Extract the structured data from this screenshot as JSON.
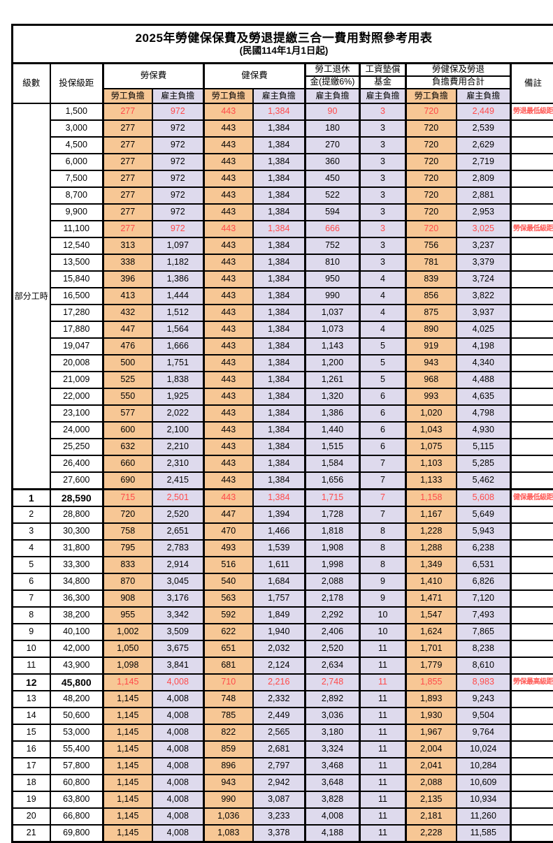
{
  "title": "2025年勞健保保費及勞退提繳三合一費用對照參考用表",
  "subtitle": "(民國114年1月1日起)",
  "header": {
    "level": "級數",
    "bracket": "投保級距",
    "labor_ins": "勞保費",
    "health_ins": "健保費",
    "pension_line1": "勞工退休",
    "pension_line2": "金(提繳6%)",
    "wage_fund_line1": "工資墊償",
    "wage_fund_line2": "基金",
    "total_line1": "勞健保及勞退",
    "total_line2": "負擔費用合計",
    "remark": "備註",
    "employee_share": "勞工負擔",
    "employer_share": "雇主負擔"
  },
  "part_time": {
    "label": "部分工時",
    "rowspan": 23
  },
  "colors": {
    "employee_bg": "#F7C795",
    "employer_bg": "#DEDAED",
    "highlight_red": "#FF4A4A",
    "border": "#000000"
  },
  "rows": [
    {
      "level": "",
      "bracket": "1,500",
      "v": [
        "277",
        "972",
        "443",
        "1,384",
        "90",
        "3",
        "720",
        "2,449"
      ],
      "remark": "勞退最低級距",
      "red": true,
      "thick_top": false,
      "bold": false
    },
    {
      "level": "",
      "bracket": "3,000",
      "v": [
        "277",
        "972",
        "443",
        "1,384",
        "180",
        "3",
        "720",
        "2,539"
      ],
      "remark": "",
      "red": false,
      "thick_top": false,
      "bold": false
    },
    {
      "level": "",
      "bracket": "4,500",
      "v": [
        "277",
        "972",
        "443",
        "1,384",
        "270",
        "3",
        "720",
        "2,629"
      ],
      "remark": "",
      "red": false,
      "thick_top": false,
      "bold": false
    },
    {
      "level": "",
      "bracket": "6,000",
      "v": [
        "277",
        "972",
        "443",
        "1,384",
        "360",
        "3",
        "720",
        "2,719"
      ],
      "remark": "",
      "red": false,
      "thick_top": false,
      "bold": false
    },
    {
      "level": "",
      "bracket": "7,500",
      "v": [
        "277",
        "972",
        "443",
        "1,384",
        "450",
        "3",
        "720",
        "2,809"
      ],
      "remark": "",
      "red": false,
      "thick_top": false,
      "bold": false
    },
    {
      "level": "",
      "bracket": "8,700",
      "v": [
        "277",
        "972",
        "443",
        "1,384",
        "522",
        "3",
        "720",
        "2,881"
      ],
      "remark": "",
      "red": false,
      "thick_top": false,
      "bold": false
    },
    {
      "level": "",
      "bracket": "9,900",
      "v": [
        "277",
        "972",
        "443",
        "1,384",
        "594",
        "3",
        "720",
        "2,953"
      ],
      "remark": "",
      "red": false,
      "thick_top": false,
      "bold": false
    },
    {
      "level": "",
      "bracket": "11,100",
      "v": [
        "277",
        "972",
        "443",
        "1,384",
        "666",
        "3",
        "720",
        "3,025"
      ],
      "remark": "勞保最低級距",
      "red": true,
      "thick_top": false,
      "bold": false
    },
    {
      "level": "",
      "bracket": "12,540",
      "v": [
        "313",
        "1,097",
        "443",
        "1,384",
        "752",
        "3",
        "756",
        "3,237"
      ],
      "remark": "",
      "red": false,
      "thick_top": false,
      "bold": false
    },
    {
      "level": "",
      "bracket": "13,500",
      "v": [
        "338",
        "1,182",
        "443",
        "1,384",
        "810",
        "3",
        "781",
        "3,379"
      ],
      "remark": "",
      "red": false,
      "thick_top": false,
      "bold": false
    },
    {
      "level": "",
      "bracket": "15,840",
      "v": [
        "396",
        "1,386",
        "443",
        "1,384",
        "950",
        "4",
        "839",
        "3,724"
      ],
      "remark": "",
      "red": false,
      "thick_top": false,
      "bold": false
    },
    {
      "level": "",
      "bracket": "16,500",
      "v": [
        "413",
        "1,444",
        "443",
        "1,384",
        "990",
        "4",
        "856",
        "3,822"
      ],
      "remark": "",
      "red": false,
      "thick_top": false,
      "bold": false
    },
    {
      "level": "",
      "bracket": "17,280",
      "v": [
        "432",
        "1,512",
        "443",
        "1,384",
        "1,037",
        "4",
        "875",
        "3,937"
      ],
      "remark": "",
      "red": false,
      "thick_top": false,
      "bold": false
    },
    {
      "level": "",
      "bracket": "17,880",
      "v": [
        "447",
        "1,564",
        "443",
        "1,384",
        "1,073",
        "4",
        "890",
        "4,025"
      ],
      "remark": "",
      "red": false,
      "thick_top": false,
      "bold": false
    },
    {
      "level": "",
      "bracket": "19,047",
      "v": [
        "476",
        "1,666",
        "443",
        "1,384",
        "1,143",
        "5",
        "919",
        "4,198"
      ],
      "remark": "",
      "red": false,
      "thick_top": false,
      "bold": false
    },
    {
      "level": "",
      "bracket": "20,008",
      "v": [
        "500",
        "1,751",
        "443",
        "1,384",
        "1,200",
        "5",
        "943",
        "4,340"
      ],
      "remark": "",
      "red": false,
      "thick_top": false,
      "bold": false
    },
    {
      "level": "",
      "bracket": "21,009",
      "v": [
        "525",
        "1,838",
        "443",
        "1,384",
        "1,261",
        "5",
        "968",
        "4,488"
      ],
      "remark": "",
      "red": false,
      "thick_top": false,
      "bold": false
    },
    {
      "level": "",
      "bracket": "22,000",
      "v": [
        "550",
        "1,925",
        "443",
        "1,384",
        "1,320",
        "6",
        "993",
        "4,635"
      ],
      "remark": "",
      "red": false,
      "thick_top": false,
      "bold": false
    },
    {
      "level": "",
      "bracket": "23,100",
      "v": [
        "577",
        "2,022",
        "443",
        "1,384",
        "1,386",
        "6",
        "1,020",
        "4,798"
      ],
      "remark": "",
      "red": false,
      "thick_top": false,
      "bold": false
    },
    {
      "level": "",
      "bracket": "24,000",
      "v": [
        "600",
        "2,100",
        "443",
        "1,384",
        "1,440",
        "6",
        "1,043",
        "4,930"
      ],
      "remark": "",
      "red": false,
      "thick_top": false,
      "bold": false
    },
    {
      "level": "",
      "bracket": "25,250",
      "v": [
        "632",
        "2,210",
        "443",
        "1,384",
        "1,515",
        "6",
        "1,075",
        "5,115"
      ],
      "remark": "",
      "red": false,
      "thick_top": false,
      "bold": false
    },
    {
      "level": "",
      "bracket": "26,400",
      "v": [
        "660",
        "2,310",
        "443",
        "1,384",
        "1,584",
        "7",
        "1,103",
        "5,285"
      ],
      "remark": "",
      "red": false,
      "thick_top": false,
      "bold": false
    },
    {
      "level": "",
      "bracket": "27,600",
      "v": [
        "690",
        "2,415",
        "443",
        "1,384",
        "1,656",
        "7",
        "1,133",
        "5,462"
      ],
      "remark": "",
      "red": false,
      "thick_top": false,
      "bold": false
    },
    {
      "level": "1",
      "bracket": "28,590",
      "v": [
        "715",
        "2,501",
        "443",
        "1,384",
        "1,715",
        "7",
        "1,158",
        "5,608"
      ],
      "remark": "健保最低級距",
      "red": true,
      "thick_top": true,
      "bold": true
    },
    {
      "level": "2",
      "bracket": "28,800",
      "v": [
        "720",
        "2,520",
        "447",
        "1,394",
        "1,728",
        "7",
        "1,167",
        "5,649"
      ],
      "remark": "",
      "red": false,
      "thick_top": false,
      "bold": false
    },
    {
      "level": "3",
      "bracket": "30,300",
      "v": [
        "758",
        "2,651",
        "470",
        "1,466",
        "1,818",
        "8",
        "1,228",
        "5,943"
      ],
      "remark": "",
      "red": false,
      "thick_top": false,
      "bold": false
    },
    {
      "level": "4",
      "bracket": "31,800",
      "v": [
        "795",
        "2,783",
        "493",
        "1,539",
        "1,908",
        "8",
        "1,288",
        "6,238"
      ],
      "remark": "",
      "red": false,
      "thick_top": false,
      "bold": false
    },
    {
      "level": "5",
      "bracket": "33,300",
      "v": [
        "833",
        "2,914",
        "516",
        "1,611",
        "1,998",
        "8",
        "1,349",
        "6,531"
      ],
      "remark": "",
      "red": false,
      "thick_top": false,
      "bold": false
    },
    {
      "level": "6",
      "bracket": "34,800",
      "v": [
        "870",
        "3,045",
        "540",
        "1,684",
        "2,088",
        "9",
        "1,410",
        "6,826"
      ],
      "remark": "",
      "red": false,
      "thick_top": false,
      "bold": false
    },
    {
      "level": "7",
      "bracket": "36,300",
      "v": [
        "908",
        "3,176",
        "563",
        "1,757",
        "2,178",
        "9",
        "1,471",
        "7,120"
      ],
      "remark": "",
      "red": false,
      "thick_top": false,
      "bold": false
    },
    {
      "level": "8",
      "bracket": "38,200",
      "v": [
        "955",
        "3,342",
        "592",
        "1,849",
        "2,292",
        "10",
        "1,547",
        "7,493"
      ],
      "remark": "",
      "red": false,
      "thick_top": false,
      "bold": false
    },
    {
      "level": "9",
      "bracket": "40,100",
      "v": [
        "1,002",
        "3,509",
        "622",
        "1,940",
        "2,406",
        "10",
        "1,624",
        "7,865"
      ],
      "remark": "",
      "red": false,
      "thick_top": false,
      "bold": false
    },
    {
      "level": "10",
      "bracket": "42,000",
      "v": [
        "1,050",
        "3,675",
        "651",
        "2,032",
        "2,520",
        "11",
        "1,701",
        "8,238"
      ],
      "remark": "",
      "red": false,
      "thick_top": false,
      "bold": false
    },
    {
      "level": "11",
      "bracket": "43,900",
      "v": [
        "1,098",
        "3,841",
        "681",
        "2,124",
        "2,634",
        "11",
        "1,779",
        "8,610"
      ],
      "remark": "",
      "red": false,
      "thick_top": false,
      "bold": false
    },
    {
      "level": "12",
      "bracket": "45,800",
      "v": [
        "1,145",
        "4,008",
        "710",
        "2,216",
        "2,748",
        "11",
        "1,855",
        "8,983"
      ],
      "remark": "勞保最高級距",
      "red": true,
      "thick_top": false,
      "bold": true
    },
    {
      "level": "13",
      "bracket": "48,200",
      "v": [
        "1,145",
        "4,008",
        "748",
        "2,332",
        "2,892",
        "11",
        "1,893",
        "9,243"
      ],
      "remark": "",
      "red": false,
      "thick_top": false,
      "bold": false
    },
    {
      "level": "14",
      "bracket": "50,600",
      "v": [
        "1,145",
        "4,008",
        "785",
        "2,449",
        "3,036",
        "11",
        "1,930",
        "9,504"
      ],
      "remark": "",
      "red": false,
      "thick_top": false,
      "bold": false
    },
    {
      "level": "15",
      "bracket": "53,000",
      "v": [
        "1,145",
        "4,008",
        "822",
        "2,565",
        "3,180",
        "11",
        "1,967",
        "9,764"
      ],
      "remark": "",
      "red": false,
      "thick_top": false,
      "bold": false
    },
    {
      "level": "16",
      "bracket": "55,400",
      "v": [
        "1,145",
        "4,008",
        "859",
        "2,681",
        "3,324",
        "11",
        "2,004",
        "10,024"
      ],
      "remark": "",
      "red": false,
      "thick_top": false,
      "bold": false
    },
    {
      "level": "17",
      "bracket": "57,800",
      "v": [
        "1,145",
        "4,008",
        "896",
        "2,797",
        "3,468",
        "11",
        "2,041",
        "10,284"
      ],
      "remark": "",
      "red": false,
      "thick_top": false,
      "bold": false
    },
    {
      "level": "18",
      "bracket": "60,800",
      "v": [
        "1,145",
        "4,008",
        "943",
        "2,942",
        "3,648",
        "11",
        "2,088",
        "10,609"
      ],
      "remark": "",
      "red": false,
      "thick_top": false,
      "bold": false
    },
    {
      "level": "19",
      "bracket": "63,800",
      "v": [
        "1,145",
        "4,008",
        "990",
        "3,087",
        "3,828",
        "11",
        "2,135",
        "10,934"
      ],
      "remark": "",
      "red": false,
      "thick_top": false,
      "bold": false
    },
    {
      "level": "20",
      "bracket": "66,800",
      "v": [
        "1,145",
        "4,008",
        "1,036",
        "3,233",
        "4,008",
        "11",
        "2,181",
        "11,260"
      ],
      "remark": "",
      "red": false,
      "thick_top": false,
      "bold": false
    },
    {
      "level": "21",
      "bracket": "69,800",
      "v": [
        "1,145",
        "4,008",
        "1,083",
        "3,378",
        "4,188",
        "11",
        "2,228",
        "11,585"
      ],
      "remark": "",
      "red": false,
      "thick_top": false,
      "bold": false
    }
  ]
}
